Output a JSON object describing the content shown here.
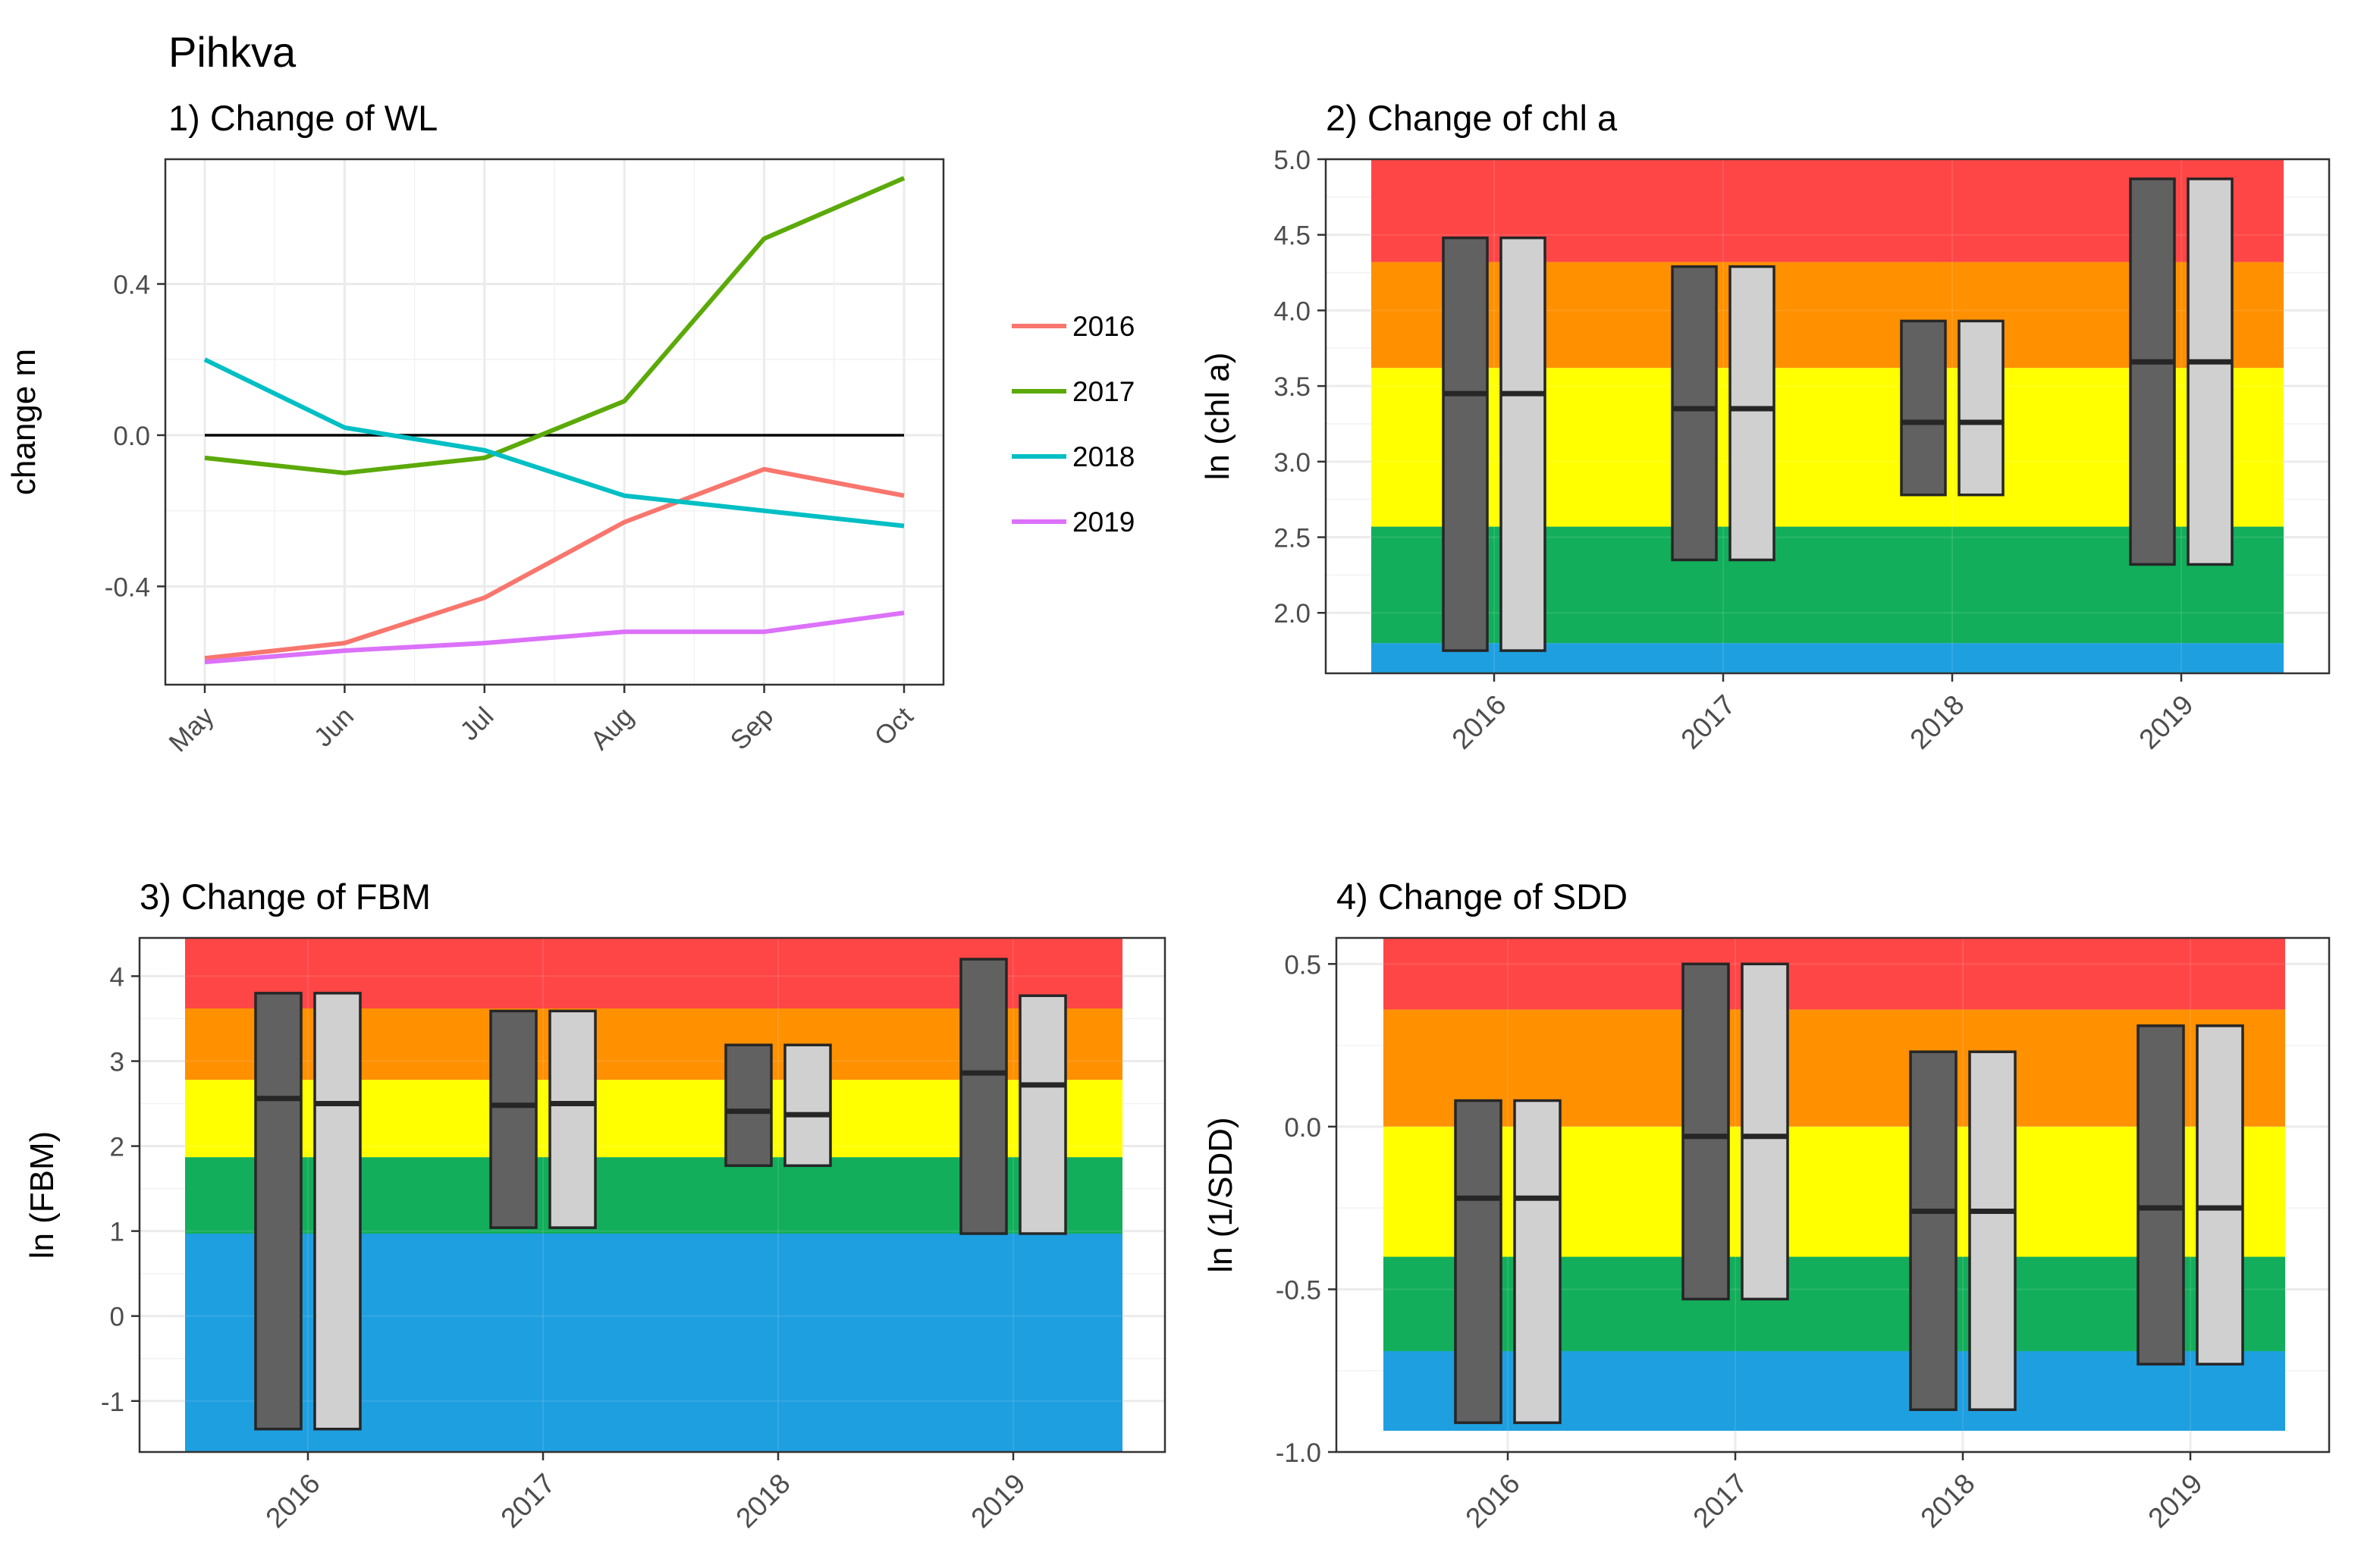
{
  "figure_title": "Pihkva",
  "chart_data": [
    {
      "type": "line",
      "title": "1) Change of WL",
      "xlabel": "",
      "ylabel": "change m",
      "categories": [
        "May",
        "Jun",
        "Jul",
        "Aug",
        "Sep",
        "Oct"
      ],
      "ylim": [
        -0.66,
        0.73
      ],
      "yticks": [
        -0.4,
        0.0,
        0.4
      ],
      "ytick_labels": [
        "-0.4",
        "0.0",
        "0.4"
      ],
      "reference_line": 0,
      "legend_position": "right",
      "series": [
        {
          "name": "2016",
          "color": "#F8766D",
          "values": [
            -0.59,
            -0.55,
            -0.43,
            -0.23,
            -0.09,
            -0.16
          ]
        },
        {
          "name": "2017",
          "color": "#5BAA09",
          "values": [
            -0.06,
            -0.1,
            -0.06,
            0.09,
            0.52,
            0.68
          ]
        },
        {
          "name": "2018",
          "color": "#00BFC4",
          "values": [
            0.2,
            0.02,
            -0.04,
            -0.16,
            -0.2,
            -0.24
          ]
        },
        {
          "name": "2019",
          "color": "#DC71FA",
          "values": [
            -0.6,
            -0.57,
            -0.55,
            -0.52,
            -0.52,
            -0.47
          ]
        }
      ]
    },
    {
      "type": "box",
      "title": "2) Change of chl a",
      "ylabel": "ln (chl a)",
      "categories": [
        "2016",
        "2017",
        "2018",
        "2019"
      ],
      "ylim": [
        1.6,
        5.0
      ],
      "yticks": [
        2.0,
        2.5,
        3.0,
        3.5,
        4.0,
        4.5,
        5.0
      ],
      "ytick_labels": [
        "2.0",
        "2.5",
        "3.0",
        "3.5",
        "4.0",
        "4.5",
        "5.0"
      ],
      "bands": [
        {
          "from": 1.6,
          "to": 1.8,
          "color": "#1E9FE0"
        },
        {
          "from": 1.8,
          "to": 2.57,
          "color": "#12AE5B"
        },
        {
          "from": 2.57,
          "to": 3.62,
          "color": "#FFFF00"
        },
        {
          "from": 3.62,
          "to": 4.32,
          "color": "#FF9000"
        },
        {
          "from": 4.32,
          "to": 5.0,
          "color": "#FF4646"
        }
      ],
      "boxes": [
        {
          "category": "2016",
          "dark": {
            "low": 1.75,
            "mid": 3.45,
            "high": 4.48
          },
          "light": {
            "low": 1.75,
            "mid": 3.45,
            "high": 4.48
          }
        },
        {
          "category": "2017",
          "dark": {
            "low": 2.35,
            "mid": 3.35,
            "high": 4.29
          },
          "light": {
            "low": 2.35,
            "mid": 3.35,
            "high": 4.29
          }
        },
        {
          "category": "2018",
          "dark": {
            "low": 2.78,
            "mid": 3.26,
            "high": 3.93
          },
          "light": {
            "low": 2.78,
            "mid": 3.26,
            "high": 3.93
          }
        },
        {
          "category": "2019",
          "dark": {
            "low": 2.32,
            "mid": 3.66,
            "high": 4.87
          },
          "light": {
            "low": 2.32,
            "mid": 3.66,
            "high": 4.87
          }
        }
      ]
    },
    {
      "type": "box",
      "title": "3) Change of FBM",
      "ylabel": "ln (FBM)",
      "categories": [
        "2016",
        "2017",
        "2018",
        "2019"
      ],
      "ylim": [
        -1.6,
        4.45
      ],
      "yticks": [
        -1,
        0,
        1,
        2,
        3,
        4
      ],
      "ytick_labels": [
        "-1",
        "0",
        "1",
        "2",
        "3",
        "4"
      ],
      "bands": [
        {
          "from": -1.6,
          "to": 0.97,
          "color": "#1E9FE0"
        },
        {
          "from": 0.97,
          "to": 1.87,
          "color": "#12AE5B"
        },
        {
          "from": 1.87,
          "to": 2.78,
          "color": "#FFFF00"
        },
        {
          "from": 2.78,
          "to": 3.62,
          "color": "#FF9000"
        },
        {
          "from": 3.62,
          "to": 4.45,
          "color": "#FF4646"
        }
      ],
      "boxes": [
        {
          "category": "2016",
          "dark": {
            "low": -1.33,
            "mid": 2.56,
            "high": 3.8
          },
          "light": {
            "low": -1.33,
            "mid": 2.5,
            "high": 3.8
          }
        },
        {
          "category": "2017",
          "dark": {
            "low": 1.04,
            "mid": 2.48,
            "high": 3.59
          },
          "light": {
            "low": 1.04,
            "mid": 2.5,
            "high": 3.59
          }
        },
        {
          "category": "2018",
          "dark": {
            "low": 1.77,
            "mid": 2.41,
            "high": 3.19
          },
          "light": {
            "low": 1.77,
            "mid": 2.37,
            "high": 3.19
          }
        },
        {
          "category": "2019",
          "dark": {
            "low": 0.97,
            "mid": 2.86,
            "high": 4.2
          },
          "light": {
            "low": 0.97,
            "mid": 2.72,
            "high": 3.77
          }
        }
      ]
    },
    {
      "type": "box",
      "title": "4) Change of SDD",
      "ylabel": "ln (1/SDD)",
      "categories": [
        "2016",
        "2017",
        "2018",
        "2019"
      ],
      "ylim": [
        -1.0,
        0.58
      ],
      "yticks": [
        -1.0,
        -0.5,
        0.0,
        0.5
      ],
      "ytick_labels": [
        "-1.0",
        "-0.5",
        "0.0",
        "0.5"
      ],
      "bands": [
        {
          "from": -1.0,
          "to": -0.69,
          "color": "#1E9FE0"
        },
        {
          "from": -0.69,
          "to": -0.4,
          "color": "#12AE5B"
        },
        {
          "from": -0.4,
          "to": 0.0,
          "color": "#FFFF00"
        },
        {
          "from": 0.0,
          "to": 0.36,
          "color": "#FF9000"
        },
        {
          "from": 0.36,
          "to": 0.58,
          "color": "#FF4646"
        }
      ],
      "boxes": [
        {
          "category": "2016",
          "dark": {
            "low": -0.91,
            "mid": -0.22,
            "high": 0.08
          },
          "light": {
            "low": -0.91,
            "mid": -0.22,
            "high": 0.08
          }
        },
        {
          "category": "2017",
          "dark": {
            "low": -0.53,
            "mid": -0.03,
            "high": 0.5
          },
          "light": {
            "low": -0.53,
            "mid": -0.03,
            "high": 0.5
          }
        },
        {
          "category": "2018",
          "dark": {
            "low": -0.87,
            "mid": -0.26,
            "high": 0.23
          },
          "light": {
            "low": -0.87,
            "mid": -0.26,
            "high": 0.23
          }
        },
        {
          "category": "2019",
          "dark": {
            "low": -0.73,
            "mid": -0.25,
            "high": 0.31
          },
          "light": {
            "low": -0.73,
            "mid": -0.25,
            "high": 0.31
          }
        }
      ]
    }
  ]
}
